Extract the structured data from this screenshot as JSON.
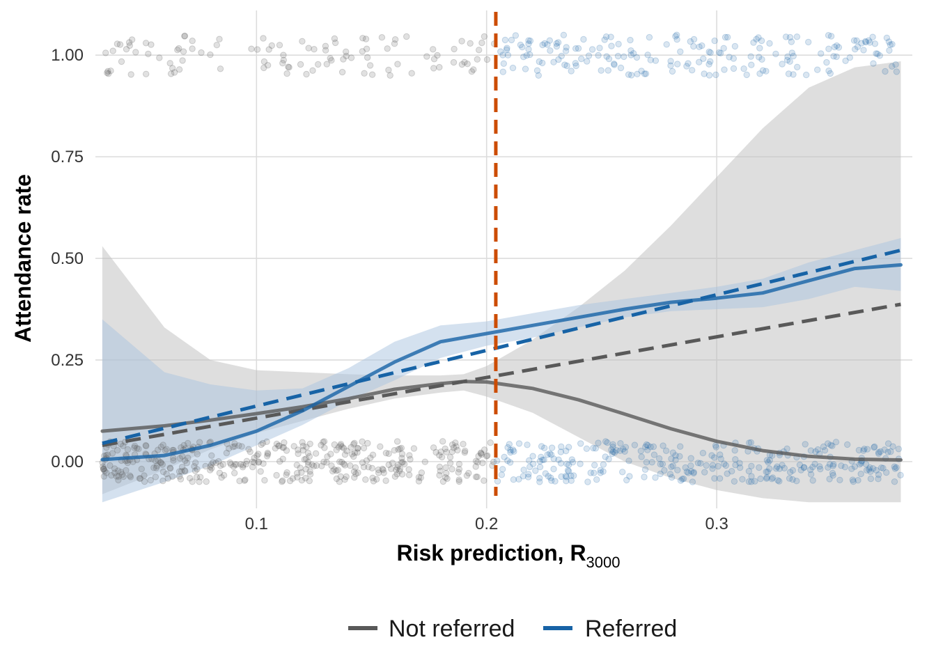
{
  "chart_data": {
    "type": "scatter",
    "xlabel": "Risk prediction, R",
    "xlabel_subscript": "3000",
    "ylabel": "Attendance rate",
    "xlim": [
      0.03,
      0.385
    ],
    "ylim": [
      -0.115,
      1.11
    ],
    "x_ticks": [
      0.1,
      0.2,
      0.3
    ],
    "x_tick_labels": [
      "0.1",
      "0.2",
      "0.3"
    ],
    "y_ticks": [
      0.0,
      0.25,
      0.5,
      0.75,
      1.0
    ],
    "y_tick_labels": [
      "0.00",
      "0.25",
      "0.50",
      "0.75",
      "1.00"
    ],
    "grid": true,
    "legend_position": "bottom",
    "threshold_x": 0.204,
    "colors": {
      "not_referred": "#595959",
      "referred": "#1763a6",
      "threshold": "#cc4c02",
      "not_referred_band": "#bdbdbd",
      "referred_band": "#a9c4e0"
    },
    "series": [
      {
        "name": "Not referred",
        "smooth": {
          "x": [
            0.033,
            0.06,
            0.08,
            0.1,
            0.12,
            0.14,
            0.16,
            0.18,
            0.19,
            0.2,
            0.22,
            0.24,
            0.26,
            0.28,
            0.3,
            0.32,
            0.34,
            0.36,
            0.38
          ],
          "y": [
            0.075,
            0.088,
            0.102,
            0.118,
            0.135,
            0.155,
            0.178,
            0.192,
            0.197,
            0.196,
            0.18,
            0.152,
            0.117,
            0.081,
            0.05,
            0.027,
            0.013,
            0.006,
            0.004
          ]
        },
        "band": {
          "lower": [
            -0.08,
            -0.02,
            0.03,
            0.07,
            0.1,
            0.13,
            0.155,
            0.17,
            0.175,
            0.16,
            0.12,
            0.06,
            0.0,
            -0.04,
            -0.07,
            -0.09,
            -0.1,
            -0.1,
            -0.1
          ],
          "upper": [
            0.53,
            0.33,
            0.25,
            0.225,
            0.22,
            0.215,
            0.212,
            0.212,
            0.215,
            0.235,
            0.3,
            0.38,
            0.47,
            0.58,
            0.7,
            0.82,
            0.92,
            0.97,
            0.985
          ]
        },
        "linear": {
          "x": [
            0.033,
            0.38
          ],
          "y": [
            0.04,
            0.387
          ]
        }
      },
      {
        "name": "Referred",
        "smooth": {
          "x": [
            0.033,
            0.06,
            0.08,
            0.1,
            0.12,
            0.14,
            0.16,
            0.18,
            0.2,
            0.22,
            0.24,
            0.26,
            0.28,
            0.3,
            0.32,
            0.34,
            0.36,
            0.38
          ],
          "y": [
            0.005,
            0.015,
            0.04,
            0.075,
            0.125,
            0.185,
            0.245,
            0.295,
            0.315,
            0.335,
            0.355,
            0.375,
            0.392,
            0.402,
            0.415,
            0.445,
            0.475,
            0.484
          ]
        },
        "band": {
          "lower": [
            -0.1,
            -0.05,
            -0.01,
            0.04,
            0.09,
            0.15,
            0.2,
            0.255,
            0.285,
            0.305,
            0.33,
            0.355,
            0.37,
            0.375,
            0.38,
            0.4,
            0.43,
            0.42
          ],
          "upper": [
            0.35,
            0.22,
            0.19,
            0.175,
            0.18,
            0.23,
            0.295,
            0.335,
            0.345,
            0.365,
            0.385,
            0.4,
            0.415,
            0.43,
            0.45,
            0.49,
            0.52,
            0.55
          ]
        },
        "linear": {
          "x": [
            0.033,
            0.38
          ],
          "y": [
            0.045,
            0.52
          ]
        }
      }
    ],
    "points": {
      "not_referred_x_range": [
        0.033,
        0.204
      ],
      "referred_x_range": [
        0.204,
        0.38
      ],
      "y_levels": [
        0,
        1
      ],
      "jitter": 0.05
    }
  },
  "legend": {
    "items": [
      {
        "label": "Not referred",
        "color": "#595959"
      },
      {
        "label": "Referred",
        "color": "#1763a6"
      }
    ]
  }
}
